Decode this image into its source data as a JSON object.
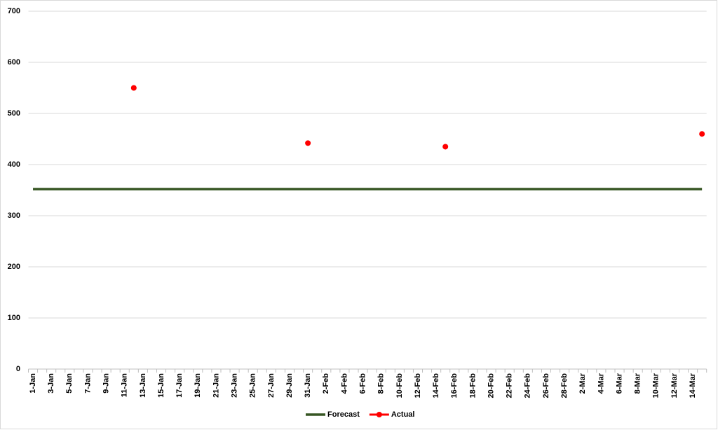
{
  "chart_data": {
    "type": "line",
    "categories": [
      "1-Jan",
      null,
      "3-Jan",
      null,
      "5-Jan",
      null,
      "7-Jan",
      null,
      "9-Jan",
      null,
      "11-Jan",
      null,
      "13-Jan",
      null,
      "15-Jan",
      null,
      "17-Jan",
      null,
      "19-Jan",
      null,
      "21-Jan",
      null,
      "23-Jan",
      null,
      "25-Jan",
      null,
      "27-Jan",
      null,
      "29-Jan",
      null,
      "31-Jan",
      null,
      "2-Feb",
      null,
      "4-Feb",
      null,
      "6-Feb",
      null,
      "8-Feb",
      null,
      "10-Feb",
      null,
      "12-Feb",
      null,
      "14-Feb",
      null,
      "16-Feb",
      null,
      "18-Feb",
      null,
      "20-Feb",
      null,
      "22-Feb",
      null,
      "24-Feb",
      null,
      "26-Feb",
      null,
      "28-Feb",
      null,
      "2-Mar",
      null,
      "4-Mar",
      null,
      "6-Mar",
      null,
      "8-Mar",
      null,
      "10-Mar",
      null,
      "12-Mar",
      null,
      "14-Mar",
      null
    ],
    "series": [
      {
        "name": "Forecast",
        "color": "#375623",
        "marker": false,
        "values": [
          352,
          352,
          352,
          352,
          352,
          352,
          352,
          352,
          352,
          352,
          352,
          352,
          352,
          352,
          352,
          352,
          352,
          352,
          352,
          352,
          352,
          352,
          352,
          352,
          352,
          352,
          352,
          352,
          352,
          352,
          352,
          352,
          352,
          352,
          352,
          352,
          352,
          352,
          352,
          352,
          352,
          352,
          352,
          352,
          352,
          352,
          352,
          352,
          352,
          352,
          352,
          352,
          352,
          352,
          352,
          352,
          352,
          352,
          352,
          352,
          352,
          352,
          352,
          352,
          352,
          352,
          352,
          352,
          352,
          352,
          352,
          352,
          352,
          352
        ]
      },
      {
        "name": "Actual",
        "color": "#ff0000",
        "marker": true,
        "values": [
          null,
          null,
          null,
          null,
          null,
          null,
          null,
          null,
          null,
          null,
          null,
          550,
          null,
          null,
          null,
          null,
          null,
          null,
          null,
          null,
          null,
          null,
          null,
          null,
          null,
          null,
          null,
          null,
          null,
          null,
          442,
          null,
          null,
          null,
          null,
          null,
          null,
          null,
          null,
          null,
          null,
          null,
          null,
          null,
          null,
          435,
          null,
          null,
          null,
          null,
          null,
          null,
          null,
          null,
          null,
          null,
          null,
          null,
          null,
          null,
          null,
          null,
          null,
          null,
          null,
          null,
          null,
          null,
          null,
          null,
          null,
          null,
          null,
          460
        ]
      }
    ],
    "ylim": [
      0,
      700
    ],
    "yticks": [
      0,
      100,
      200,
      300,
      400,
      500,
      600,
      700
    ],
    "grid": true,
    "legend": "bottom"
  }
}
